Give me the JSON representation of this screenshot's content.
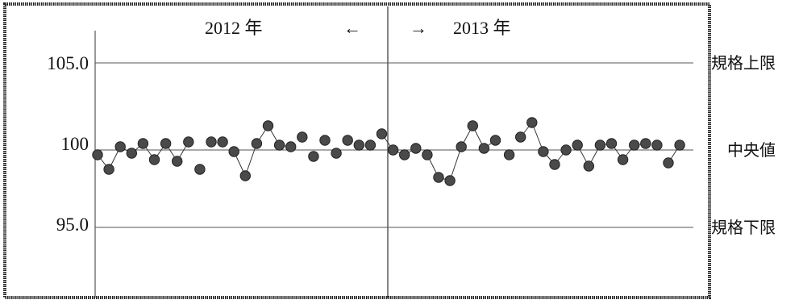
{
  "chart_data": {
    "type": "scatter",
    "title": "",
    "xlabel": "",
    "ylabel": "",
    "ylim": [
      90,
      107
    ],
    "grid": false,
    "y_ticks": [
      "105.0",
      "100",
      "95.0"
    ],
    "y_tick_values": [
      105,
      100,
      95
    ],
    "period_labels": {
      "left": "2012 年",
      "left_arrow": "←",
      "right_arrow": "→",
      "right": "2013 年"
    },
    "reference_lines": [
      {
        "label": "規格上限",
        "value": 105.0
      },
      {
        "label": "中央値",
        "value": 99.6
      },
      {
        "label": "規格下限",
        "value": 94.8
      }
    ],
    "divider_after_index": 35,
    "series": [
      {
        "values": [
          99.3,
          98.4,
          99.8,
          99.4,
          100.0,
          99.0,
          100.0,
          98.9,
          100.1,
          98.4,
          100.1,
          100.1,
          99.5,
          98.0,
          100.0,
          101.1,
          99.9,
          99.8,
          100.4,
          99.2,
          100.2,
          99.4,
          100.2,
          99.9,
          99.9,
          100.6,
          99.6,
          99.3,
          99.7,
          99.3,
          97.9,
          97.7,
          99.8,
          101.1,
          99.7,
          100.2,
          99.3,
          100.4,
          101.3,
          99.5,
          98.7,
          99.6,
          99.9,
          98.6,
          99.9,
          100.0,
          99.0,
          99.9,
          100.0,
          99.9,
          98.8,
          99.9
        ],
        "connected": [
          true,
          true,
          true,
          true,
          true,
          true,
          true,
          true,
          false,
          false,
          false,
          false,
          true,
          true,
          true,
          true,
          true,
          false,
          false,
          false,
          false,
          false,
          false,
          false,
          false,
          true,
          true,
          true,
          false,
          true,
          true,
          true,
          true,
          true,
          true,
          false,
          false,
          true,
          true,
          true,
          true,
          false,
          true,
          true,
          true,
          true,
          true,
          true,
          false,
          false,
          true,
          true
        ]
      }
    ]
  },
  "colors": {
    "frame": "#222222",
    "gridline": "#555555",
    "point_fill": "#4a4a4a",
    "point_stroke": "#222222"
  }
}
